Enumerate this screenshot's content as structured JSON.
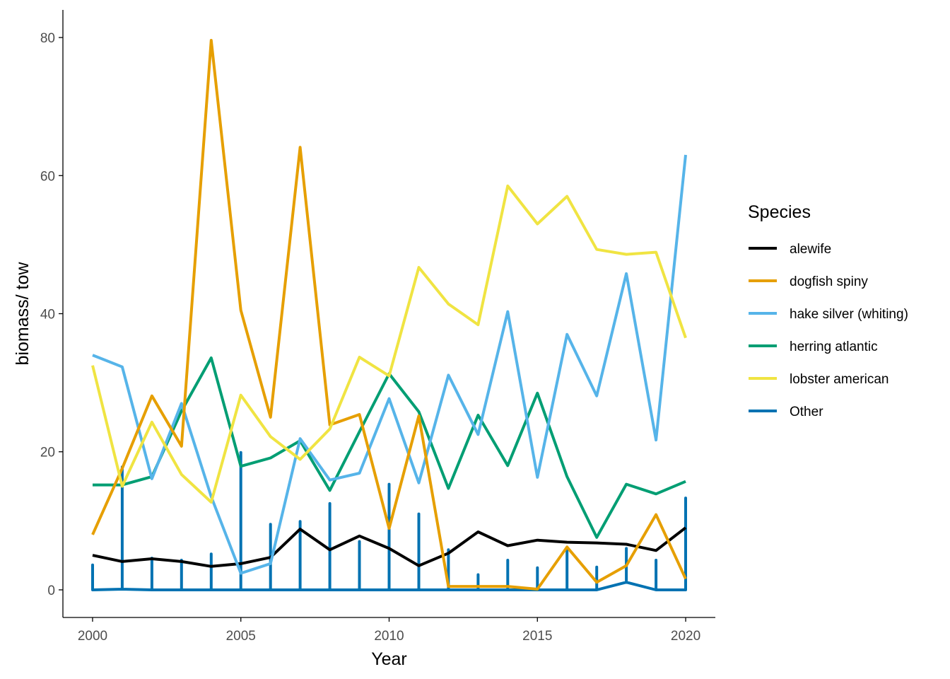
{
  "chart_data": {
    "type": "line",
    "xlabel": "Year",
    "ylabel": "biomass/ tow",
    "xlim": [
      1999,
      2021
    ],
    "ylim": [
      -4,
      84
    ],
    "x_ticks": [
      2000,
      2005,
      2010,
      2015,
      2020
    ],
    "y_ticks": [
      0,
      20,
      40,
      60,
      80
    ],
    "grid": false,
    "legend": {
      "title": "Species",
      "position": "right"
    },
    "x": [
      2000,
      2001,
      2002,
      2003,
      2004,
      2005,
      2006,
      2007,
      2008,
      2009,
      2010,
      2011,
      2012,
      2013,
      2014,
      2015,
      2016,
      2017,
      2018,
      2019,
      2020
    ],
    "series": [
      {
        "name": "alewife",
        "color": "#000000",
        "values": [
          5.0,
          4.1,
          4.5,
          4.1,
          3.4,
          3.8,
          4.7,
          8.8,
          5.8,
          7.8,
          6.0,
          3.5,
          5.3,
          8.4,
          6.4,
          7.2,
          6.9,
          6.8,
          6.6,
          5.7,
          9.0
        ]
      },
      {
        "name": "dogfish spiny",
        "color": "#E69F00",
        "values": [
          8.0,
          17.6,
          28.1,
          20.8,
          79.6,
          40.5,
          25.0,
          64.1,
          23.9,
          25.4,
          8.9,
          25.2,
          0.5,
          0.5,
          0.5,
          0.1,
          6.2,
          1.1,
          3.5,
          10.9,
          1.6
        ]
      },
      {
        "name": "hake silver (whiting)",
        "color": "#56B4E9",
        "values": [
          34.0,
          32.3,
          16.1,
          27.0,
          13.5,
          2.4,
          3.8,
          21.9,
          15.9,
          16.9,
          27.7,
          15.5,
          31.1,
          22.5,
          40.3,
          16.3,
          37.0,
          28.1,
          45.8,
          21.7,
          63.0
        ]
      },
      {
        "name": "herring atlantic",
        "color": "#009E73",
        "values": [
          15.2,
          15.2,
          16.4,
          25.9,
          33.6,
          17.9,
          19.1,
          21.6,
          14.4,
          22.9,
          31.3,
          25.8,
          14.7,
          25.3,
          18.0,
          28.5,
          16.4,
          7.6,
          15.3,
          13.9,
          15.7
        ]
      },
      {
        "name": "lobster american",
        "color": "#F0E442",
        "values": [
          32.5,
          15.0,
          24.3,
          16.7,
          12.7,
          28.2,
          22.2,
          18.9,
          23.3,
          33.7,
          31.0,
          46.7,
          41.4,
          38.4,
          58.5,
          53.0,
          57.0,
          49.3,
          48.6,
          48.9,
          36.5
        ]
      },
      {
        "name": "Other",
        "color": "#0072B2",
        "values": [
          3.6,
          17.8,
          4.6,
          4.3,
          5.2,
          19.9,
          9.5,
          9.9,
          12.5,
          7.0,
          15.3,
          11.0,
          5.8,
          2.2,
          4.3,
          3.2,
          5.9,
          3.3,
          6.0,
          4.3,
          13.3
        ],
        "baseline": [
          0.0,
          0.1,
          0.0,
          0.0,
          0.0,
          0.0,
          0.0,
          0.0,
          0.0,
          0.0,
          0.0,
          0.0,
          0.0,
          0.0,
          0.0,
          0.0,
          0.0,
          0.0,
          1.1,
          0.0,
          0.0
        ]
      }
    ]
  }
}
